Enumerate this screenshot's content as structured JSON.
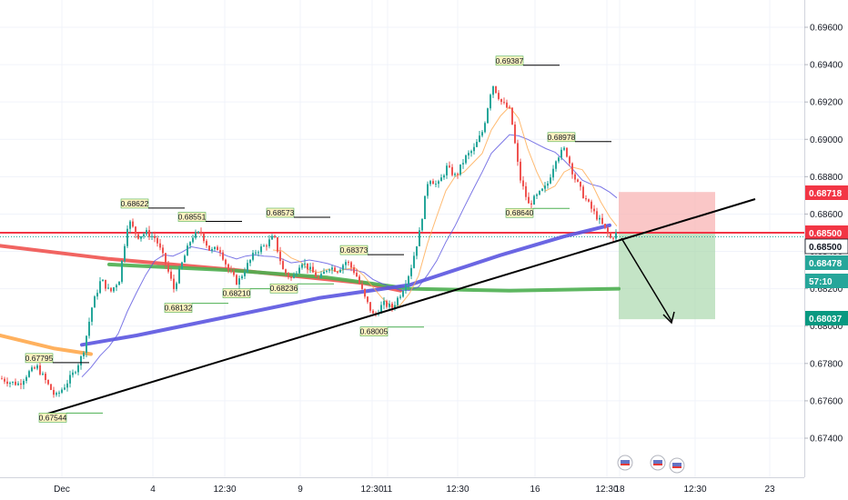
{
  "chart_data": {
    "type": "candlestick",
    "instrument_note": "",
    "x_ticks": [
      "Dec",
      "4",
      "12:30",
      "9",
      "12:30",
      "11",
      "12:30",
      "16",
      "12:30",
      "18",
      "12:30",
      "23"
    ],
    "y_ticks": [
      "0.69600",
      "0.69400",
      "0.69200",
      "0.69000",
      "0.68800",
      "0.68600",
      "0.68400",
      "0.68200",
      "0.68000",
      "0.67800",
      "0.67600",
      "0.67400"
    ],
    "ylim": [
      0.672,
      0.698
    ],
    "price_tags": [
      {
        "value": "0.68718",
        "color": "#f23645"
      },
      {
        "value": "0.68500",
        "color": "#f23645"
      },
      {
        "value": "0.68500",
        "color": "#ffffff"
      },
      {
        "value": "0.68478",
        "color": "#26a69a"
      },
      {
        "value": "57:10",
        "color": "#26a69a"
      },
      {
        "value": "0.68037",
        "color": "#089981"
      }
    ],
    "pivot_labels": [
      {
        "text": "0.69387",
        "x": 560,
        "y": 0.69387
      },
      {
        "text": "0.68978",
        "x": 617,
        "y": 0.68978
      },
      {
        "text": "0.68640",
        "x": 571,
        "y": 0.6864
      },
      {
        "text": "0.68622",
        "x": 148,
        "y": 0.68622
      },
      {
        "text": "0.68551",
        "x": 211,
        "y": 0.68551
      },
      {
        "text": "0.68573",
        "x": 308,
        "y": 0.68573
      },
      {
        "text": "0.68373",
        "x": 389,
        "y": 0.68373
      },
      {
        "text": "0.68132",
        "x": 196,
        "y": 0.68132
      },
      {
        "text": "0.68210",
        "x": 260,
        "y": 0.6821
      },
      {
        "text": "0.68236",
        "x": 312,
        "y": 0.68236
      },
      {
        "text": "0.68005",
        "x": 411,
        "y": 0.68005
      },
      {
        "text": "0.67795",
        "x": 43,
        "y": 0.67795
      },
      {
        "text": "0.67544",
        "x": 58,
        "y": 0.67544
      }
    ],
    "close_series": [
      [
        0,
        0.6772
      ],
      [
        10,
        0.677
      ],
      [
        20,
        0.6769
      ],
      [
        30,
        0.6775
      ],
      [
        40,
        0.6778
      ],
      [
        50,
        0.677
      ],
      [
        60,
        0.6762
      ],
      [
        70,
        0.6768
      ],
      [
        80,
        0.6775
      ],
      [
        90,
        0.6785
      ],
      [
        100,
        0.681
      ],
      [
        110,
        0.6825
      ],
      [
        120,
        0.6818
      ],
      [
        130,
        0.6825
      ],
      [
        140,
        0.6857
      ],
      [
        150,
        0.6848
      ],
      [
        160,
        0.685
      ],
      [
        170,
        0.6847
      ],
      [
        180,
        0.6835
      ],
      [
        190,
        0.682
      ],
      [
        200,
        0.6835
      ],
      [
        210,
        0.6848
      ],
      [
        220,
        0.685
      ],
      [
        230,
        0.684
      ],
      [
        240,
        0.6842
      ],
      [
        250,
        0.683
      ],
      [
        260,
        0.6823
      ],
      [
        270,
        0.6832
      ],
      [
        280,
        0.684
      ],
      [
        290,
        0.6843
      ],
      [
        300,
        0.6848
      ],
      [
        310,
        0.683
      ],
      [
        320,
        0.6825
      ],
      [
        330,
        0.6835
      ],
      [
        340,
        0.683
      ],
      [
        350,
        0.6825
      ],
      [
        360,
        0.6832
      ],
      [
        370,
        0.683
      ],
      [
        380,
        0.6835
      ],
      [
        390,
        0.6828
      ],
      [
        400,
        0.6815
      ],
      [
        410,
        0.6805
      ],
      [
        420,
        0.6812
      ],
      [
        430,
        0.681
      ],
      [
        440,
        0.6818
      ],
      [
        450,
        0.683
      ],
      [
        460,
        0.685
      ],
      [
        470,
        0.688
      ],
      [
        480,
        0.6875
      ],
      [
        490,
        0.6885
      ],
      [
        500,
        0.688
      ],
      [
        510,
        0.689
      ],
      [
        520,
        0.6895
      ],
      [
        530,
        0.6905
      ],
      [
        540,
        0.693
      ],
      [
        550,
        0.692
      ],
      [
        560,
        0.6915
      ],
      [
        570,
        0.688
      ],
      [
        580,
        0.6865
      ],
      [
        590,
        0.687
      ],
      [
        600,
        0.6875
      ],
      [
        610,
        0.689
      ],
      [
        620,
        0.6895
      ],
      [
        630,
        0.688
      ],
      [
        640,
        0.687
      ],
      [
        650,
        0.6862
      ],
      [
        660,
        0.6855
      ],
      [
        670,
        0.6847
      ],
      [
        678,
        0.685
      ]
    ],
    "moving_averages": [
      {
        "color": "#f05350",
        "points": [
          [
            0,
            0.6843
          ],
          [
            120,
            0.6836
          ],
          [
            260,
            0.683
          ],
          [
            400,
            0.6823
          ],
          [
            440,
            0.6819
          ]
        ]
      },
      {
        "color": "#4caf50",
        "points": [
          [
            120,
            0.6833
          ],
          [
            250,
            0.683
          ],
          [
            360,
            0.6826
          ],
          [
            450,
            0.682
          ],
          [
            560,
            0.6819
          ],
          [
            680,
            0.682
          ]
        ]
      },
      {
        "color": "#5b55e0",
        "points": [
          [
            90,
            0.679
          ],
          [
            150,
            0.6795
          ],
          [
            250,
            0.6805
          ],
          [
            350,
            0.6815
          ],
          [
            450,
            0.6822
          ],
          [
            550,
            0.6838
          ],
          [
            620,
            0.6848
          ],
          [
            670,
            0.6854
          ]
        ]
      },
      {
        "color": "#ffa94d",
        "points": [
          [
            0,
            0.6795
          ],
          [
            60,
            0.6788
          ],
          [
            100,
            0.6785
          ]
        ]
      }
    ],
    "trendline": {
      "from": [
        48,
        0.67525
      ],
      "to": [
        830,
        0.6868
      ]
    },
    "zones": {
      "stop": {
        "x0": 680,
        "x1": 786,
        "y0": 0.68718,
        "y1": 0.685,
        "color": "#f8b4b4"
      },
      "target": {
        "x0": 680,
        "x1": 786,
        "y0": 0.685,
        "y1": 0.68037,
        "color": "#a5d6a7"
      }
    }
  }
}
